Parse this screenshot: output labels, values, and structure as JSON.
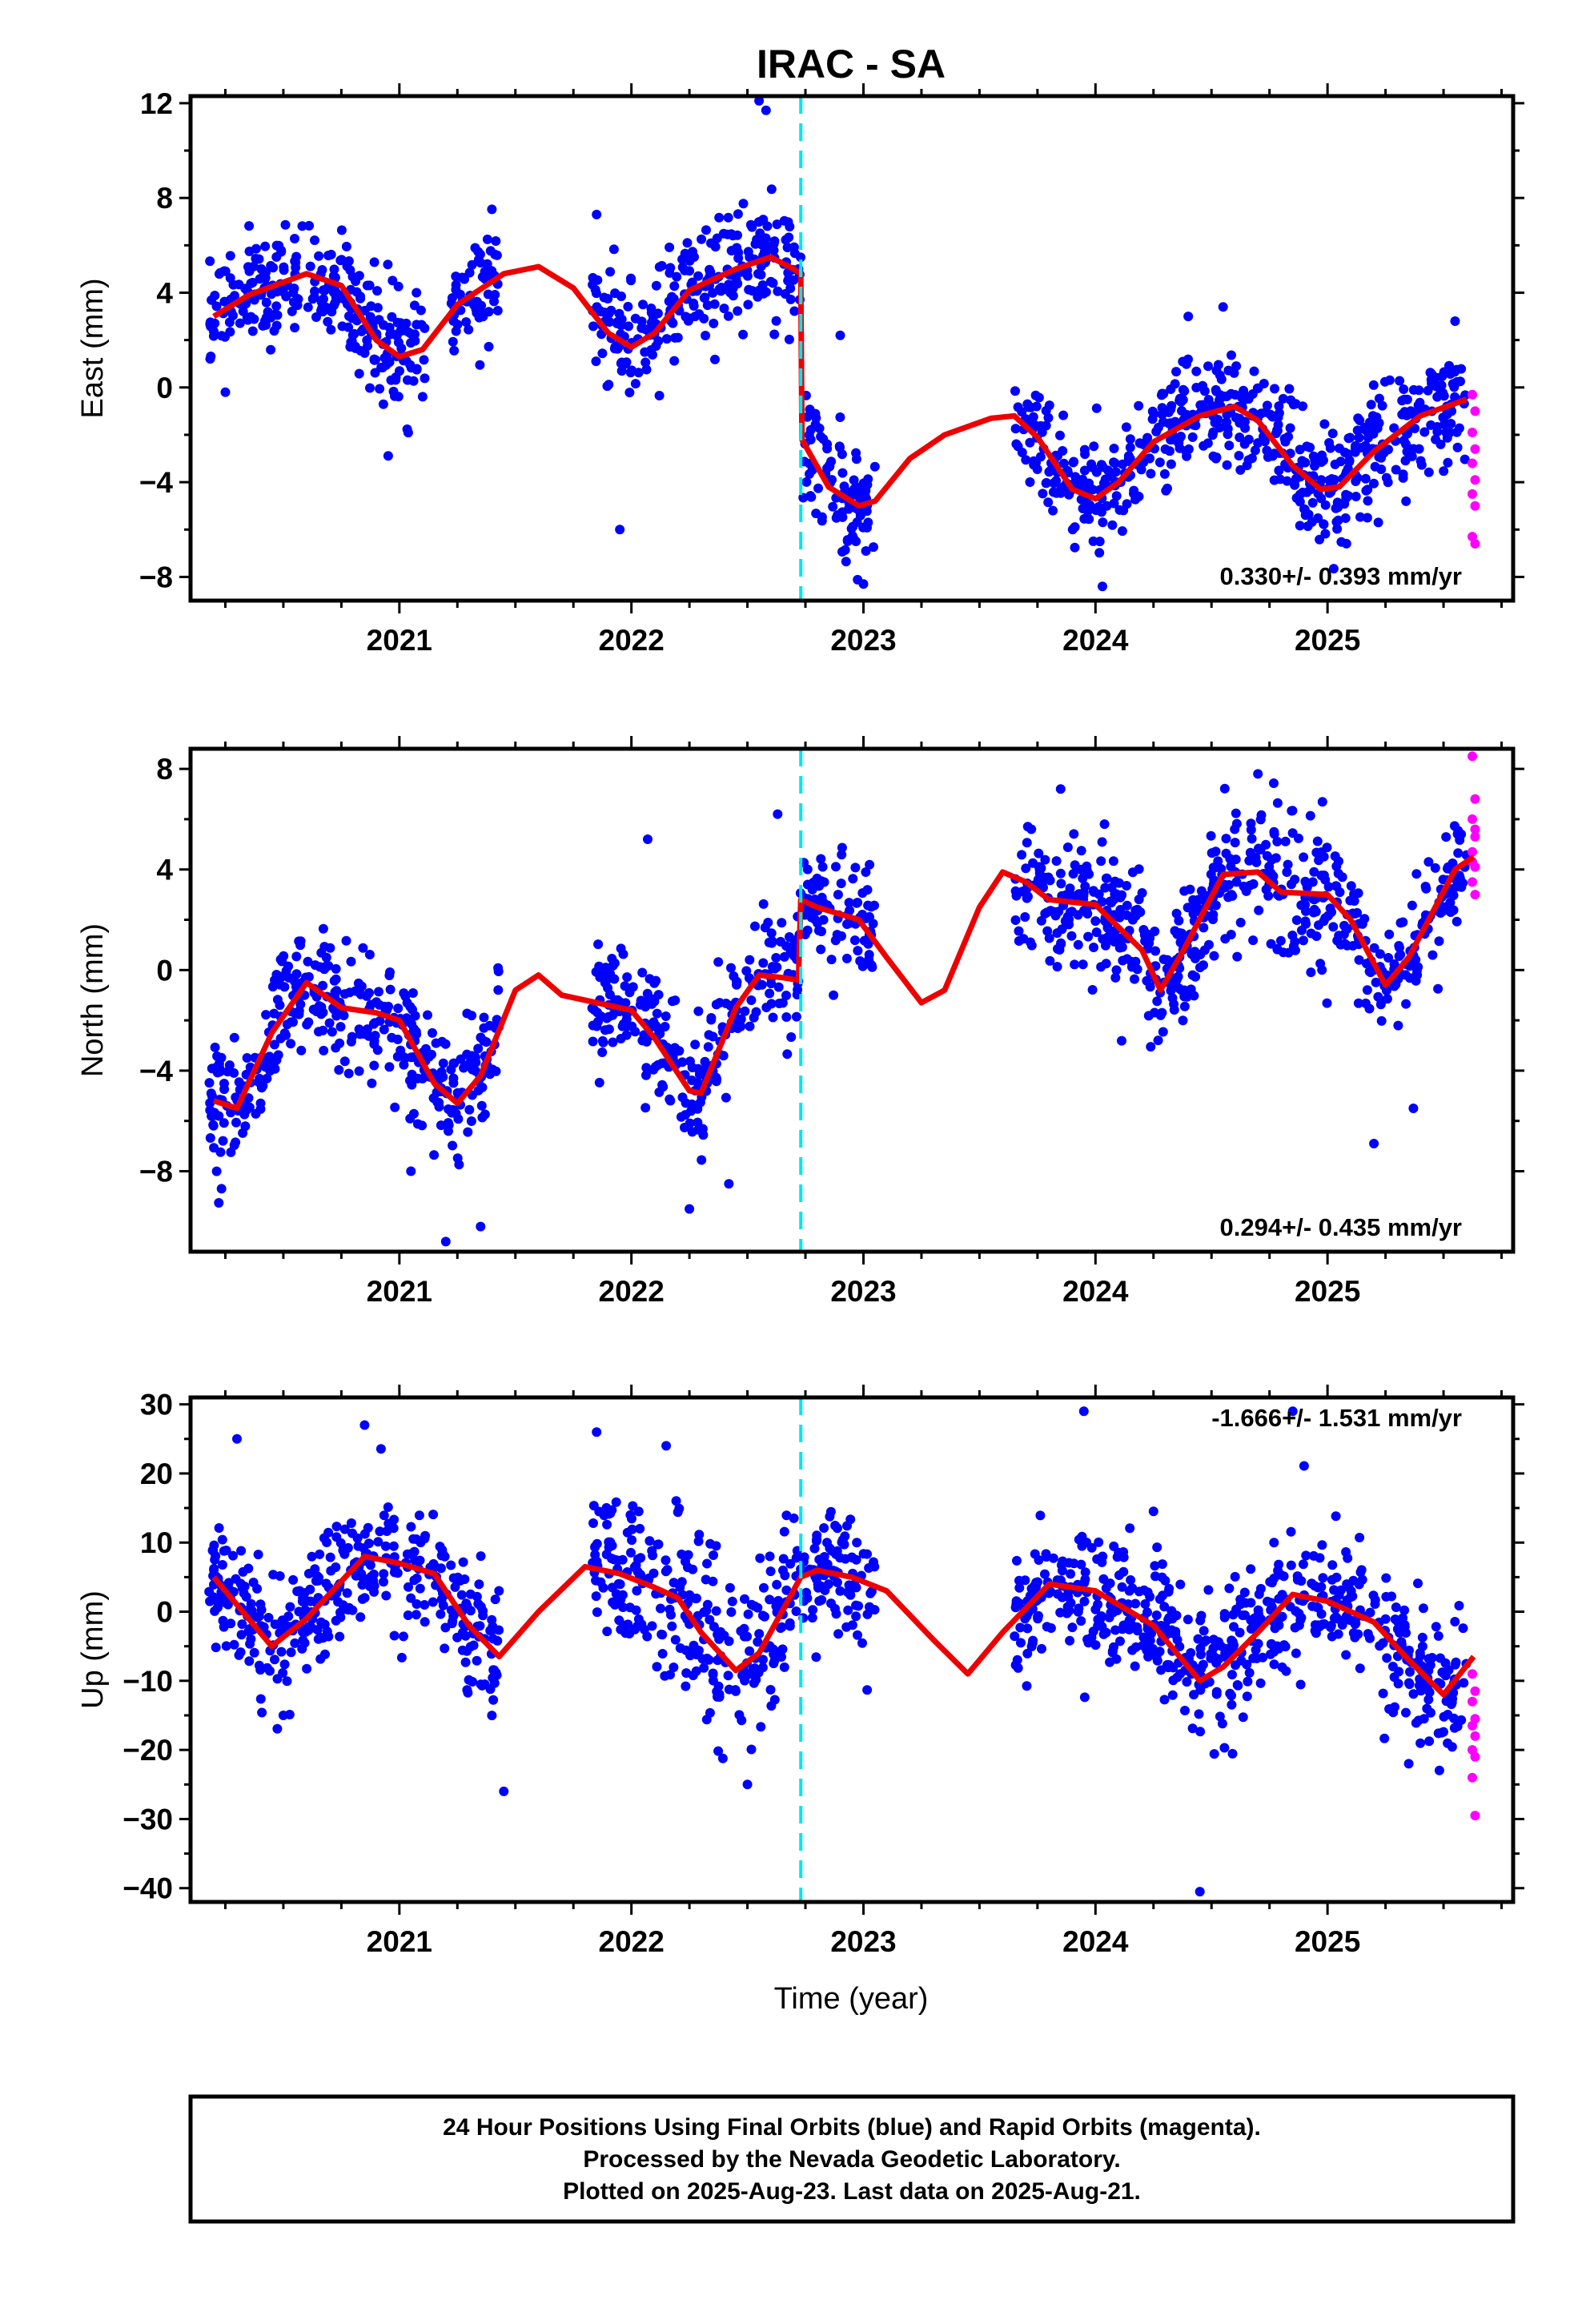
{
  "title": "IRAC - SA",
  "xlabel": "Time (year)",
  "footer": {
    "line1": "24 Hour Positions Using Final Orbits (blue) and Rapid Orbits (magenta).",
    "line2": "Processed by the Nevada Geodetic Laboratory.",
    "line3": "Plotted on 2025-Aug-23. Last data on 2025-Aug-21."
  },
  "colors": {
    "final": "#0000ff",
    "rapid": "#ff00ff",
    "model": "#ee0000",
    "offset": "#00e5ee"
  },
  "chart_data": [
    {
      "type": "scatter",
      "ylabel": "East (mm)",
      "rate_text": "0.330+/- 0.393 mm/yr",
      "x_ticks": [
        "2021",
        "2022",
        "2023",
        "2024",
        "2025"
      ],
      "y_ticks": [
        12,
        8,
        4,
        0,
        -4,
        -8
      ],
      "xlim": [
        2020.1,
        2025.8
      ],
      "ylim": [
        -9,
        12.3
      ],
      "offset_epoch": 2022.73,
      "model": [
        [
          2020.2,
          3.0
        ],
        [
          2020.35,
          3.9
        ],
        [
          2020.6,
          4.8
        ],
        [
          2020.75,
          4.3
        ],
        [
          2020.9,
          2.0
        ],
        [
          2021.0,
          1.3
        ],
        [
          2021.1,
          1.6
        ],
        [
          2021.25,
          3.5
        ],
        [
          2021.45,
          4.8
        ],
        [
          2021.6,
          5.1
        ],
        [
          2021.75,
          4.2
        ],
        [
          2021.9,
          2.3
        ],
        [
          2022.0,
          1.7
        ],
        [
          2022.1,
          2.3
        ],
        [
          2022.25,
          4.1
        ],
        [
          2022.45,
          5.0
        ],
        [
          2022.6,
          5.5
        ],
        [
          2022.7,
          5.0
        ],
        [
          2022.73,
          4.8
        ],
        [
          2022.735,
          -2.2
        ],
        [
          2022.85,
          -4.2
        ],
        [
          2022.98,
          -5.0
        ],
        [
          2023.05,
          -4.8
        ],
        [
          2023.2,
          -3.0
        ],
        [
          2023.35,
          -2.0
        ],
        [
          2023.55,
          -1.3
        ],
        [
          2023.65,
          -1.2
        ],
        [
          2023.75,
          -2.1
        ],
        [
          2023.9,
          -4.3
        ],
        [
          2024.0,
          -4.7
        ],
        [
          2024.1,
          -4.0
        ],
        [
          2024.25,
          -2.3
        ],
        [
          2024.45,
          -1.2
        ],
        [
          2024.6,
          -0.8
        ],
        [
          2024.7,
          -1.4
        ],
        [
          2024.85,
          -3.3
        ],
        [
          2024.97,
          -4.3
        ],
        [
          2025.05,
          -4.2
        ],
        [
          2025.2,
          -2.7
        ],
        [
          2025.4,
          -1.2
        ],
        [
          2025.6,
          -0.5
        ]
      ],
      "series": [
        {
          "name": "Final Orbits",
          "segments": [
            {
              "x0": 2020.18,
              "x1": 2020.95,
              "sd": 1.1
            },
            {
              "x0": 2020.95,
              "x1": 2021.12,
              "sd": 1.3
            },
            {
              "x0": 2021.22,
              "x1": 2021.43,
              "sd": 1.1
            },
            {
              "x0": 2021.83,
              "x1": 2022.73,
              "sd": 1.2
            },
            {
              "x0": 2022.74,
              "x1": 2023.05,
              "sd": 1.3
            },
            {
              "x0": 2023.65,
              "x1": 2025.6,
              "sd": 1.2
            }
          ]
        },
        {
          "name": "Rapid Orbits",
          "x0": 2025.6,
          "x1": 2025.64,
          "values": [
            -0.3,
            -1.0,
            -1.9,
            -2.6,
            -3.2,
            -3.9,
            -4.5,
            -5.0,
            -6.3,
            -6.6
          ]
        }
      ],
      "outliers": [
        [
          2020.25,
          -0.2
        ],
        [
          2021.95,
          -6.0
        ],
        [
          2022.55,
          12.1
        ],
        [
          2022.58,
          11.7
        ],
        [
          2023.0,
          -8.3
        ],
        [
          2024.03,
          -8.4
        ],
        [
          2021.85,
          7.3
        ],
        [
          2022.9,
          2.2
        ],
        [
          2024.4,
          3.0
        ],
        [
          2024.55,
          3.4
        ],
        [
          2025.55,
          2.8
        ]
      ]
    },
    {
      "type": "scatter",
      "ylabel": "North (mm)",
      "rate_text": "0.294+/- 0.435 mm/yr",
      "x_ticks": [
        "2021",
        "2022",
        "2023",
        "2024",
        "2025"
      ],
      "y_ticks": [
        8,
        4,
        0,
        -4,
        -8
      ],
      "xlim": [
        2020.1,
        2025.8
      ],
      "ylim": [
        -11.2,
        8.8
      ],
      "offset_epoch": 2022.73,
      "model": [
        [
          2020.2,
          -5.2
        ],
        [
          2020.3,
          -5.5
        ],
        [
          2020.45,
          -2.5
        ],
        [
          2020.6,
          -0.5
        ],
        [
          2020.75,
          -1.5
        ],
        [
          2020.9,
          -1.7
        ],
        [
          2021.0,
          -2.0
        ],
        [
          2021.15,
          -4.5
        ],
        [
          2021.25,
          -5.3
        ],
        [
          2021.35,
          -4.2
        ],
        [
          2021.5,
          -0.8
        ],
        [
          2021.6,
          -0.2
        ],
        [
          2021.7,
          -1.0
        ],
        [
          2021.85,
          -1.3
        ],
        [
          2022.0,
          -1.6
        ],
        [
          2022.1,
          -2.7
        ],
        [
          2022.25,
          -4.8
        ],
        [
          2022.3,
          -4.9
        ],
        [
          2022.45,
          -1.5
        ],
        [
          2022.55,
          -0.2
        ],
        [
          2022.65,
          -0.3
        ],
        [
          2022.72,
          -0.4
        ],
        [
          2022.73,
          2.8
        ],
        [
          2022.8,
          2.5
        ],
        [
          2022.98,
          2.0
        ],
        [
          2023.1,
          0.5
        ],
        [
          2023.25,
          -1.3
        ],
        [
          2023.35,
          -0.8
        ],
        [
          2023.5,
          2.5
        ],
        [
          2023.6,
          3.9
        ],
        [
          2023.7,
          3.5
        ],
        [
          2023.8,
          2.8
        ],
        [
          2024.0,
          2.6
        ],
        [
          2024.2,
          0.8
        ],
        [
          2024.28,
          -0.8
        ],
        [
          2024.38,
          0.8
        ],
        [
          2024.55,
          3.8
        ],
        [
          2024.7,
          3.9
        ],
        [
          2024.8,
          3.1
        ],
        [
          2025.0,
          3.0
        ],
        [
          2025.1,
          2.0
        ],
        [
          2025.25,
          -0.6
        ],
        [
          2025.35,
          0.5
        ],
        [
          2025.55,
          4.0
        ],
        [
          2025.63,
          4.5
        ]
      ],
      "series": [
        {
          "name": "Final Orbits",
          "segments": [
            {
              "x0": 2020.18,
              "x1": 2021.43,
              "sd": 1.2
            },
            {
              "x0": 2021.83,
              "x1": 2022.73,
              "sd": 1.3
            },
            {
              "x0": 2022.74,
              "x1": 2023.05,
              "sd": 1.1
            },
            {
              "x0": 2023.65,
              "x1": 2025.6,
              "sd": 1.3
            }
          ]
        },
        {
          "name": "Rapid Orbits",
          "x0": 2025.6,
          "x1": 2025.64,
          "values": [
            8.5,
            6.8,
            6.0,
            5.3,
            4.7,
            4.1,
            3.5,
            3.0,
            4.3,
            5.6
          ]
        }
      ],
      "outliers": [
        [
          2021.2,
          -10.8
        ],
        [
          2021.35,
          -10.2
        ],
        [
          2022.25,
          -9.5
        ],
        [
          2022.42,
          -8.5
        ],
        [
          2021.05,
          -8.0
        ],
        [
          2022.07,
          5.2
        ],
        [
          2022.63,
          6.2
        ],
        [
          2024.7,
          7.8
        ],
        [
          2025.2,
          -6.9
        ],
        [
          2025.37,
          -5.5
        ],
        [
          2023.85,
          7.2
        ]
      ]
    },
    {
      "type": "scatter",
      "ylabel": "Up (mm)",
      "rate_text": "-1.666+/- 1.531 mm/yr",
      "x_ticks": [
        "2021",
        "2022",
        "2023",
        "2024",
        "2025"
      ],
      "y_ticks": [
        30,
        20,
        10,
        0,
        -10,
        -20,
        -30,
        -40
      ],
      "xlim": [
        2020.1,
        2025.8
      ],
      "ylim": [
        -42,
        31
      ],
      "offset_epoch": 2022.73,
      "model": [
        [
          2020.2,
          5.0
        ],
        [
          2020.3,
          1.0
        ],
        [
          2020.45,
          -5.0
        ],
        [
          2020.6,
          -1.0
        ],
        [
          2020.85,
          8.0
        ],
        [
          2021.0,
          7.0
        ],
        [
          2021.15,
          5.5
        ],
        [
          2021.3,
          -2.0
        ],
        [
          2021.43,
          -6.5
        ],
        [
          2021.6,
          0.0
        ],
        [
          2021.8,
          6.5
        ],
        [
          2021.95,
          5.5
        ],
        [
          2022.1,
          3.5
        ],
        [
          2022.2,
          2.0
        ],
        [
          2022.3,
          -3.0
        ],
        [
          2022.45,
          -8.5
        ],
        [
          2022.55,
          -6.0
        ],
        [
          2022.73,
          5.0
        ],
        [
          2022.8,
          6.0
        ],
        [
          2022.95,
          5.0
        ],
        [
          2023.1,
          3.0
        ],
        [
          2023.3,
          -4.0
        ],
        [
          2023.45,
          -9.0
        ],
        [
          2023.6,
          -3.0
        ],
        [
          2023.8,
          4.0
        ],
        [
          2024.0,
          3.0
        ],
        [
          2024.25,
          -2.0
        ],
        [
          2024.45,
          -10.0
        ],
        [
          2024.55,
          -8.0
        ],
        [
          2024.7,
          -3.0
        ],
        [
          2024.85,
          2.5
        ],
        [
          2025.0,
          1.5
        ],
        [
          2025.2,
          -1.5
        ],
        [
          2025.35,
          -7.0
        ],
        [
          2025.5,
          -12.0
        ],
        [
          2025.63,
          -6.5
        ]
      ],
      "series": [
        {
          "name": "Final Orbits",
          "segments": [
            {
              "x0": 2020.18,
              "x1": 2021.43,
              "sd": 4.5
            },
            {
              "x0": 2021.83,
              "x1": 2022.73,
              "sd": 6.0
            },
            {
              "x0": 2022.74,
              "x1": 2023.05,
              "sd": 5.0
            },
            {
              "x0": 2023.65,
              "x1": 2025.6,
              "sd": 5.0
            }
          ]
        },
        {
          "name": "Rapid Orbits",
          "x0": 2025.6,
          "x1": 2025.64,
          "values": [
            -9.0,
            -11.5,
            -13.0,
            -15.5,
            -16.5,
            -18.0,
            -20.0,
            -21.0,
            -24.0,
            -29.5
          ]
        }
      ],
      "outliers": [
        [
          2020.3,
          25.0
        ],
        [
          2020.85,
          27.0
        ],
        [
          2021.85,
          26.0
        ],
        [
          2022.15,
          24.0
        ],
        [
          2021.45,
          -26.0
        ],
        [
          2022.5,
          -25.0
        ],
        [
          2023.95,
          29.0
        ],
        [
          2024.45,
          -40.5
        ],
        [
          2024.85,
          29.0
        ],
        [
          2020.5,
          -15.0
        ],
        [
          2025.35,
          -22.0
        ]
      ]
    }
  ]
}
